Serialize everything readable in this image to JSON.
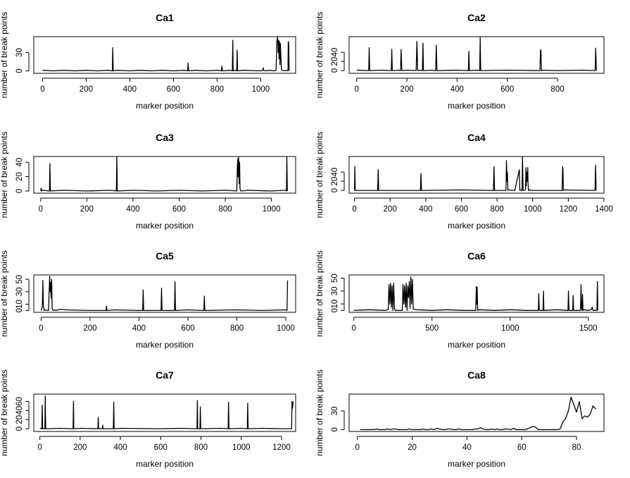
{
  "chart_data": [
    {
      "type": "line",
      "title": "Ca1",
      "xlabel": "marker position",
      "ylabel": "number of break points",
      "xticks": [
        0,
        200,
        400,
        600,
        800,
        1000
      ],
      "yticks": [
        0,
        30
      ],
      "xlim": [
        -40,
        1160
      ],
      "ylim": [
        -4,
        56
      ],
      "x": [
        0,
        50,
        100,
        150,
        200,
        250,
        300,
        320,
        322,
        324,
        340,
        400,
        450,
        500,
        550,
        600,
        650,
        665,
        667,
        670,
        700,
        750,
        800,
        820,
        822,
        825,
        860,
        870,
        872,
        874,
        885,
        890,
        892,
        894,
        920,
        1000,
        1010,
        1012,
        1014,
        1020,
        1040,
        1060,
        1070,
        1072,
        1074,
        1076,
        1078,
        1080,
        1082,
        1084,
        1086,
        1088,
        1090,
        1095,
        1100,
        1110,
        1120,
        1125,
        1126,
        1128,
        1130
      ],
      "y": [
        1,
        0,
        1,
        0,
        1,
        0,
        1,
        0,
        38,
        0,
        1,
        0,
        1,
        0,
        1,
        0,
        1,
        0,
        13,
        0,
        1,
        0,
        1,
        0,
        8,
        0,
        1,
        0,
        50,
        0,
        1,
        0,
        34,
        0,
        1,
        0,
        1,
        5,
        1,
        0,
        1,
        0,
        1,
        20,
        48,
        55,
        52,
        30,
        50,
        20,
        48,
        10,
        45,
        2,
        1,
        0,
        1,
        0,
        48,
        46,
        0
      ]
    },
    {
      "type": "line",
      "title": "Ca2",
      "xlabel": "marker position",
      "ylabel": "number of break points",
      "xticks": [
        0,
        200,
        400,
        600,
        800
      ],
      "yticks": [
        0,
        20,
        40
      ],
      "xlim": [
        -30,
        985
      ],
      "ylim": [
        -6,
        74
      ],
      "x": [
        0,
        48,
        50,
        52,
        100,
        138,
        140,
        142,
        170,
        175,
        177,
        180,
        200,
        237,
        240,
        243,
        250,
        262,
        264,
        266,
        300,
        315,
        317,
        320,
        400,
        445,
        447,
        449,
        480,
        490,
        492,
        494,
        600,
        730,
        732,
        734,
        736,
        740,
        800,
        900,
        950,
        952,
        955
      ],
      "y": [
        1,
        0,
        50,
        0,
        1,
        0,
        46,
        0,
        1,
        0,
        46,
        0,
        1,
        0,
        64,
        0,
        1,
        0,
        60,
        0,
        1,
        0,
        55,
        0,
        1,
        0,
        42,
        0,
        1,
        0,
        72,
        0,
        1,
        0,
        45,
        44,
        0,
        1,
        0,
        1,
        0,
        49,
        0
      ]
    },
    {
      "type": "line",
      "title": "Ca3",
      "xlabel": "marker position",
      "ylabel": "number of break points",
      "xticks": [
        0,
        200,
        400,
        600,
        800,
        1000
      ],
      "yticks": [
        0,
        20,
        40
      ],
      "xlim": [
        -30,
        1105
      ],
      "ylim": [
        -3,
        48
      ],
      "x": [
        0,
        2,
        4,
        6,
        38,
        40,
        42,
        100,
        200,
        300,
        328,
        330,
        332,
        400,
        500,
        600,
        700,
        800,
        850,
        852,
        854,
        856,
        858,
        860,
        862,
        864,
        866,
        868,
        900,
        1000,
        1060,
        1065,
        1067,
        1069
      ],
      "y": [
        0,
        4,
        0,
        1,
        0,
        38,
        0,
        1,
        0,
        1,
        0,
        48,
        0,
        1,
        0,
        1,
        0,
        1,
        0,
        30,
        45,
        20,
        47,
        10,
        40,
        3,
        1,
        0,
        1,
        0,
        1,
        0,
        47,
        0
      ]
    },
    {
      "type": "line",
      "title": "Ca4",
      "xlabel": "marker position",
      "ylabel": "number of break points",
      "xticks": [
        0,
        200,
        400,
        600,
        800,
        1000,
        1200,
        1400
      ],
      "yticks": [
        0,
        20,
        40
      ],
      "xlim": [
        -30,
        1400
      ],
      "ylim": [
        -6,
        74
      ],
      "x": [
        0,
        2,
        4,
        130,
        133,
        136,
        370,
        373,
        376,
        600,
        780,
        783,
        786,
        850,
        853,
        856,
        858,
        861,
        864,
        900,
        925,
        928,
        931,
        940,
        943,
        946,
        960,
        962,
        964,
        966,
        968,
        970,
        972,
        974,
        976,
        980,
        983,
        986,
        1000,
        1165,
        1168,
        1170,
        1172,
        1175,
        1350,
        1353,
        1356
      ],
      "y": [
        0,
        52,
        0,
        0,
        45,
        0,
        0,
        37,
        0,
        1,
        0,
        52,
        0,
        0,
        65,
        20,
        40,
        0,
        1,
        0,
        45,
        0,
        1,
        0,
        73,
        0,
        1,
        50,
        10,
        40,
        30,
        20,
        50,
        15,
        0,
        1,
        0,
        1,
        0,
        0,
        52,
        45,
        0,
        1,
        0,
        55,
        0
      ]
    },
    {
      "type": "line",
      "title": "Ca5",
      "xlabel": "marker position",
      "ylabel": "number of break points",
      "xticks": [
        0,
        200,
        400,
        600,
        800,
        1000
      ],
      "yticks": [
        0,
        10,
        30,
        50
      ],
      "xlim": [
        -30,
        1040
      ],
      "ylim": [
        -3,
        57
      ],
      "x": [
        0,
        5,
        7,
        9,
        11,
        13,
        15,
        30,
        35,
        37,
        39,
        41,
        43,
        45,
        47,
        49,
        55,
        60,
        80,
        100,
        200,
        265,
        267,
        269,
        300,
        400,
        415,
        417,
        419,
        490,
        492,
        494,
        545,
        547,
        549,
        600,
        665,
        667,
        669,
        800,
        900,
        1000,
        1005,
        1007
      ],
      "y": [
        0,
        6,
        48,
        10,
        3,
        0,
        1,
        0,
        55,
        30,
        45,
        20,
        50,
        3,
        1,
        0,
        1,
        0,
        2,
        1,
        0,
        0,
        7,
        0,
        1,
        0,
        0,
        33,
        0,
        0,
        36,
        0,
        0,
        46,
        0,
        1,
        0,
        23,
        0,
        1,
        0,
        1,
        0,
        48
      ]
    },
    {
      "type": "line",
      "title": "Ca6",
      "xlabel": "marker position",
      "ylabel": "number of break points",
      "xticks": [
        0,
        500,
        1000,
        1500
      ],
      "yticks": [
        0,
        10,
        30,
        50
      ],
      "xlim": [
        -30,
        1600
      ],
      "ylim": [
        -3,
        55
      ],
      "x": [
        0,
        100,
        200,
        220,
        225,
        230,
        235,
        240,
        245,
        250,
        255,
        260,
        265,
        310,
        315,
        320,
        325,
        330,
        335,
        340,
        345,
        350,
        355,
        360,
        365,
        370,
        375,
        380,
        400,
        500,
        600,
        700,
        780,
        783,
        786,
        789,
        792,
        800,
        900,
        1000,
        1100,
        1180,
        1183,
        1186,
        1210,
        1213,
        1216,
        1300,
        1370,
        1373,
        1376,
        1400,
        1403,
        1406,
        1450,
        1453,
        1456,
        1460,
        1463,
        1466,
        1470,
        1500,
        1520,
        1525,
        1530,
        1555,
        1558,
        1561
      ],
      "y": [
        0,
        1,
        0,
        1,
        40,
        10,
        42,
        5,
        38,
        0,
        42,
        3,
        0,
        0,
        40,
        10,
        38,
        5,
        42,
        0,
        38,
        20,
        45,
        3,
        52,
        10,
        48,
        2,
        1,
        0,
        1,
        0,
        0,
        37,
        10,
        36,
        0,
        1,
        0,
        1,
        0,
        0,
        26,
        0,
        0,
        30,
        0,
        1,
        0,
        30,
        0,
        0,
        23,
        0,
        0,
        40,
        5,
        0,
        25,
        0,
        1,
        0,
        1,
        5,
        0,
        0,
        45,
        0
      ]
    },
    {
      "type": "line",
      "title": "Ca7",
      "xlabel": "marker position",
      "ylabel": "number of break points",
      "xticks": [
        0,
        200,
        400,
        600,
        800,
        1000,
        1200
      ],
      "yticks": [
        0,
        20,
        40,
        60
      ],
      "xlim": [
        -30,
        1270
      ],
      "ylim": [
        -6,
        76
      ],
      "x": [
        0,
        10,
        12,
        14,
        25,
        27,
        29,
        100,
        165,
        167,
        169,
        200,
        288,
        290,
        292,
        310,
        312,
        314,
        365,
        367,
        369,
        400,
        600,
        700,
        780,
        782,
        784,
        795,
        797,
        799,
        900,
        935,
        937,
        939,
        1000,
        1030,
        1032,
        1034,
        1100,
        1200,
        1250,
        1252,
        1255,
        1257
      ],
      "y": [
        1,
        0,
        52,
        0,
        0,
        72,
        0,
        1,
        0,
        60,
        0,
        1,
        0,
        25,
        0,
        0,
        8,
        0,
        0,
        58,
        0,
        1,
        0,
        1,
        0,
        62,
        0,
        0,
        48,
        0,
        1,
        0,
        58,
        0,
        1,
        0,
        56,
        0,
        1,
        0,
        0,
        60,
        45,
        60
      ]
    },
    {
      "type": "line",
      "title": "Ca8",
      "xlabel": "marker position",
      "ylabel": "number of break points",
      "xticks": [
        0,
        20,
        40,
        60,
        80
      ],
      "yticks": [
        0,
        30
      ],
      "xlim": [
        -3,
        90
      ],
      "ylim": [
        -3,
        57
      ],
      "x": [
        1,
        2,
        3,
        4,
        5,
        6,
        7,
        8,
        9,
        10,
        11,
        12,
        13,
        14,
        15,
        16,
        17,
        18,
        19,
        20,
        21,
        22,
        23,
        24,
        25,
        26,
        27,
        28,
        29,
        30,
        31,
        32,
        33,
        34,
        35,
        36,
        37,
        38,
        39,
        40,
        41,
        42,
        43,
        44,
        45,
        46,
        47,
        48,
        49,
        50,
        51,
        52,
        53,
        54,
        55,
        56,
        57,
        58,
        59,
        60,
        61,
        62,
        63,
        64,
        65,
        66,
        67,
        68,
        69,
        70,
        71,
        72,
        73,
        74,
        75,
        76,
        77,
        78,
        79,
        80,
        81,
        82,
        83,
        84,
        85,
        86,
        87
      ],
      "y": [
        0,
        0,
        0,
        0,
        0,
        0,
        1,
        0,
        0,
        0,
        1,
        0,
        1,
        1,
        0,
        0,
        0,
        0,
        1,
        0,
        0,
        0,
        0,
        1,
        0,
        0,
        1,
        0,
        2,
        1,
        0,
        0,
        1,
        1,
        0,
        0,
        1,
        0,
        0,
        0,
        0,
        0,
        1,
        1,
        3,
        1,
        0,
        0,
        1,
        0,
        1,
        0,
        0,
        1,
        1,
        0,
        2,
        0,
        0,
        0,
        0,
        1,
        3,
        5,
        4,
        0,
        0,
        0,
        0,
        0,
        0,
        0,
        0,
        1,
        12,
        18,
        30,
        52,
        40,
        28,
        45,
        18,
        22,
        20,
        25,
        38,
        33
      ]
    }
  ]
}
